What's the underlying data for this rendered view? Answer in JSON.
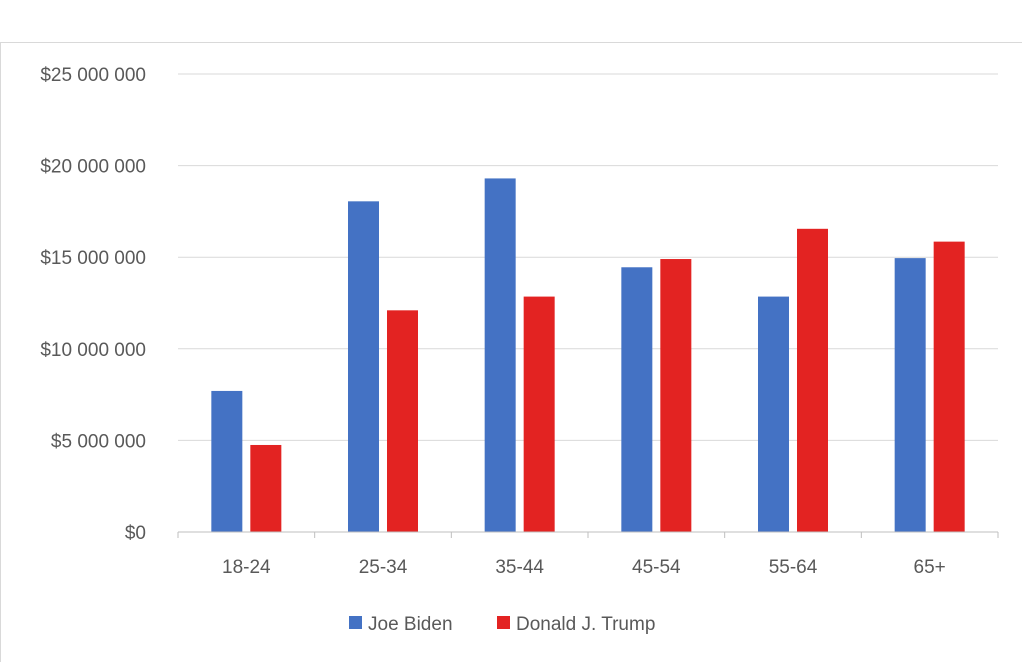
{
  "chart_data": {
    "type": "bar",
    "title": "",
    "xlabel": "",
    "ylabel": "",
    "categories": [
      "18-24",
      "25-34",
      "35-44",
      "45-54",
      "55-64",
      "65+"
    ],
    "series": [
      {
        "name": "Joe Biden",
        "color": "#4472c4",
        "values": [
          7700000,
          18050000,
          19300000,
          14450000,
          12850000,
          14950000
        ]
      },
      {
        "name": "Donald J. Trump",
        "color": "#e32322",
        "values": [
          4750000,
          12100000,
          12850000,
          14900000,
          16550000,
          15850000
        ]
      }
    ],
    "ylim": [
      0,
      25000000
    ],
    "yticks": [
      0,
      5000000,
      10000000,
      15000000,
      20000000,
      25000000
    ],
    "ytick_labels": [
      "$0",
      "$5 000 000",
      "$10 000 000",
      "$15 000 000",
      "$20 000 000",
      "$25 000 000"
    ],
    "grid": true,
    "legend": "bottom-center"
  }
}
